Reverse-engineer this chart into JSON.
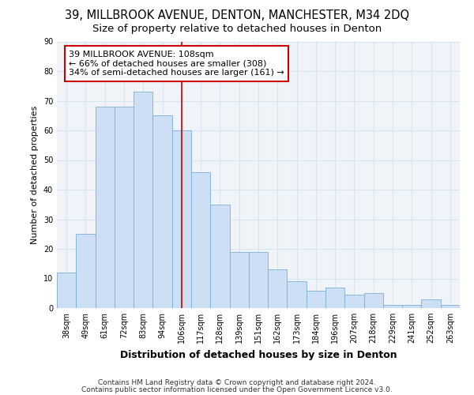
{
  "title1": "39, MILLBROOK AVENUE, DENTON, MANCHESTER, M34 2DQ",
  "title2": "Size of property relative to detached houses in Denton",
  "xlabel": "Distribution of detached houses by size in Denton",
  "ylabel": "Number of detached properties",
  "categories": [
    "38sqm",
    "49sqm",
    "61sqm",
    "72sqm",
    "83sqm",
    "94sqm",
    "106sqm",
    "117sqm",
    "128sqm",
    "139sqm",
    "151sqm",
    "162sqm",
    "173sqm",
    "184sqm",
    "196sqm",
    "207sqm",
    "218sqm",
    "229sqm",
    "241sqm",
    "252sqm",
    "263sqm"
  ],
  "values": [
    12,
    25,
    68,
    68,
    73,
    65,
    60,
    46,
    35,
    19,
    19,
    13,
    9,
    6,
    7,
    4.5,
    5,
    1,
    1,
    3,
    1
  ],
  "bar_color": "#ccdff5",
  "bar_edge_color": "#7ab0d8",
  "vline_x_index": 6,
  "vline_color": "#cc0000",
  "annotation_line1": "39 MILLBROOK AVENUE: 108sqm",
  "annotation_line2": "← 66% of detached houses are smaller (308)",
  "annotation_line3": "34% of semi-detached houses are larger (161) →",
  "annotation_box_color": "#cc0000",
  "ylim": [
    0,
    90
  ],
  "yticks": [
    0,
    10,
    20,
    30,
    40,
    50,
    60,
    70,
    80,
    90
  ],
  "grid_color": "#d8e4f0",
  "bg_color": "#f0f4f8",
  "footer1": "Contains HM Land Registry data © Crown copyright and database right 2024.",
  "footer2": "Contains public sector information licensed under the Open Government Licence v3.0.",
  "title1_fontsize": 10.5,
  "title2_fontsize": 9.5,
  "xlabel_fontsize": 9,
  "ylabel_fontsize": 8,
  "tick_fontsize": 7,
  "annotation_fontsize": 8,
  "footer_fontsize": 6.5
}
